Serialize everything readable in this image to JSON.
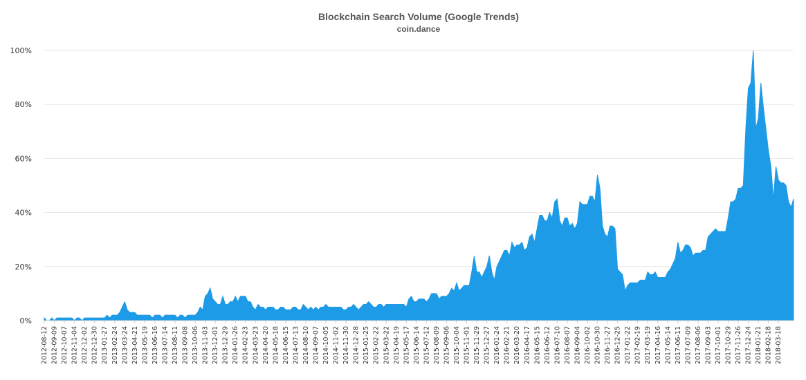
{
  "chart_data": {
    "type": "area",
    "title": "Blockchain Search Volume (Google Trends)",
    "subtitle": "coin.dance",
    "xlabel": "",
    "ylabel": "",
    "ylim": [
      0,
      100
    ],
    "y_ticks": [
      "0%",
      "20%",
      "40%",
      "60%",
      "80%",
      "100%"
    ],
    "y_tick_values": [
      0,
      20,
      40,
      60,
      80,
      100
    ],
    "grid": true,
    "colors": {
      "area": "#1e9be6",
      "grid": "#e6e6e6"
    },
    "x_tick_labels": [
      "2012-08-12",
      "2012-09-09",
      "2012-10-07",
      "2012-11-04",
      "2012-12-02",
      "2012-12-30",
      "2013-01-27",
      "2013-02-24",
      "2013-03-24",
      "2013-04-21",
      "2013-05-19",
      "2013-06-16",
      "2013-07-14",
      "2013-08-11",
      "2013-09-08",
      "2013-10-06",
      "2013-11-03",
      "2013-12-01",
      "2013-12-29",
      "2014-01-26",
      "2014-02-23",
      "2014-03-23",
      "2014-04-20",
      "2014-05-18",
      "2014-06-15",
      "2014-07-13",
      "2014-08-10",
      "2014-09-07",
      "2014-10-05",
      "2014-11-02",
      "2014-11-30",
      "2014-12-28",
      "2015-01-25",
      "2015-02-22",
      "2015-03-22",
      "2015-04-19",
      "2015-05-17",
      "2015-06-14",
      "2015-07-12",
      "2015-08-09",
      "2015-09-06",
      "2015-10-04",
      "2015-11-01",
      "2015-11-29",
      "2015-12-27",
      "2016-01-24",
      "2016-02-21",
      "2016-03-20",
      "2016-04-17",
      "2016-05-15",
      "2016-06-12",
      "2016-07-10",
      "2016-08-07",
      "2016-09-04",
      "2016-10-02",
      "2016-10-30",
      "2016-11-27",
      "2016-12-25",
      "2017-01-22",
      "2017-02-19",
      "2017-03-19",
      "2017-04-16",
      "2017-05-14",
      "2017-06-11",
      "2017-07-09",
      "2017-08-06",
      "2017-09-03",
      "2017-10-01",
      "2017-10-29",
      "2017-11-26",
      "2017-12-24",
      "2018-01-21",
      "2018-02-18",
      "2018-03-18"
    ],
    "tick_every_n_points": 4,
    "values": [
      1,
      0,
      0,
      1,
      0,
      1,
      1,
      1,
      1,
      1,
      1,
      1,
      0,
      1,
      1,
      0,
      1,
      1,
      1,
      1,
      1,
      1,
      1,
      1,
      1,
      2,
      1,
      2,
      2,
      2,
      3,
      5,
      7,
      4,
      3,
      3,
      3,
      2,
      2,
      2,
      2,
      2,
      2,
      1,
      2,
      2,
      2,
      1,
      2,
      2,
      2,
      2,
      2,
      1,
      2,
      2,
      1,
      2,
      2,
      2,
      2,
      3,
      5,
      4,
      9,
      10,
      12,
      8,
      7,
      6,
      6,
      9,
      6,
      6,
      7,
      7,
      9,
      7,
      9,
      9,
      9,
      7,
      7,
      5,
      4,
      6,
      5,
      5,
      4,
      5,
      5,
      5,
      4,
      4,
      5,
      5,
      4,
      4,
      4,
      5,
      5,
      4,
      4,
      6,
      5,
      4,
      5,
      4,
      5,
      4,
      5,
      5,
      6,
      5,
      5,
      5,
      5,
      5,
      5,
      4,
      4,
      5,
      5,
      6,
      5,
      4,
      5,
      6,
      6,
      7,
      6,
      5,
      5,
      6,
      6,
      5,
      6,
      6,
      6,
      6,
      6,
      6,
      6,
      6,
      5,
      8,
      9,
      7,
      7,
      8,
      8,
      8,
      7,
      8,
      10,
      10,
      10,
      8,
      9,
      9,
      9,
      10,
      12,
      11,
      14,
      11,
      12,
      13,
      13,
      13,
      18,
      24,
      18,
      18,
      16,
      18,
      20,
      24,
      18,
      15,
      20,
      22,
      24,
      26,
      26,
      24,
      29,
      27,
      28,
      28,
      29,
      26,
      27,
      31,
      32,
      29,
      34,
      39,
      39,
      37,
      37,
      40,
      38,
      44,
      45,
      37,
      35,
      38,
      38,
      35,
      36,
      34,
      36,
      44,
      43,
      43,
      43,
      46,
      46,
      44,
      54,
      49,
      35,
      32,
      31,
      35,
      35,
      34,
      19,
      18,
      17,
      11,
      13,
      14,
      14,
      14,
      14,
      15,
      15,
      15,
      18,
      17,
      17,
      18,
      16,
      16,
      16,
      16,
      18,
      19,
      21,
      23,
      29,
      25,
      26,
      28,
      28,
      27,
      24,
      25,
      25,
      25,
      26,
      26,
      31,
      32,
      33,
      34,
      33,
      33,
      33,
      33,
      38,
      44,
      44,
      45,
      49,
      49,
      50,
      71,
      86,
      88,
      100,
      71,
      75,
      88,
      79,
      71,
      63,
      57,
      45,
      57,
      52,
      51,
      51,
      50,
      44,
      42,
      45
    ]
  }
}
